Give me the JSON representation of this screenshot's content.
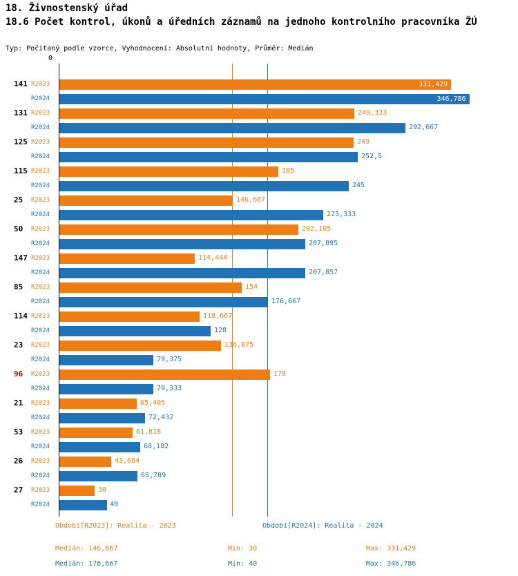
{
  "header": {
    "title1": "18. Živnostenský úřad",
    "title2": "18.6 Počet kontrol, úkonů a úředních záznamů na jednoho kontrolního pracovníka ŽÚ",
    "subtitle": "Typ: Počítaný podle vzorce, Vyhodnocení: Absolutní hodnoty, Průměr: Medián"
  },
  "chart_data": {
    "type": "bar",
    "orientation": "horizontal",
    "title": "18.6 Počet kontrol, úkonů a úředních záznamů na jednoho kontrolního pracovníka ŽÚ",
    "x_origin_label": "0",
    "xmax": 385,
    "grid": false,
    "legend_position": "bottom",
    "categories": [
      "141",
      "131",
      "125",
      "115",
      "25",
      "50",
      "147",
      "85",
      "114",
      "23",
      "96",
      "21",
      "53",
      "26",
      "27"
    ],
    "highlight_category": "96",
    "highlight_color": "#c00000",
    "series": [
      {
        "name": "R2023",
        "legend": "Období[R2023]: Realita - 2023",
        "color": "#ED7D14",
        "values": [
          331.429,
          249.333,
          249,
          185,
          146.667,
          202.105,
          114.444,
          154,
          118.667,
          136.875,
          178,
          65.405,
          61.818,
          43.684,
          30
        ],
        "labels": [
          "331,429",
          "249,333",
          "249",
          "185",
          "146,667",
          "202,105",
          "114,444",
          "154",
          "118,667",
          "136,875",
          "178",
          "65,405",
          "61,818",
          "43,684",
          "30"
        ],
        "median": 146.667,
        "median_label": "Medián: 146,667",
        "min_label": "Min: 30",
        "max_label": "Max: 331,429"
      },
      {
        "name": "R2024",
        "legend": "Období[R2024]: Realita - 2024",
        "color": "#2273B5",
        "values": [
          346.786,
          292.667,
          252.5,
          245,
          223.333,
          207.895,
          207.857,
          176.667,
          128,
          79.375,
          79.333,
          72.432,
          68.182,
          65.789,
          40
        ],
        "labels": [
          "346,786",
          "292,667",
          "252,5",
          "245",
          "223,333",
          "207,895",
          "207,857",
          "176,667",
          "128",
          "79,375",
          "79,333",
          "72,432",
          "68,182",
          "65,789",
          "40"
        ],
        "median": 176.667,
        "median_label": "Medián: 176,667",
        "min_label": "Min: 40",
        "max_label": "Max: 346,786"
      }
    ]
  }
}
